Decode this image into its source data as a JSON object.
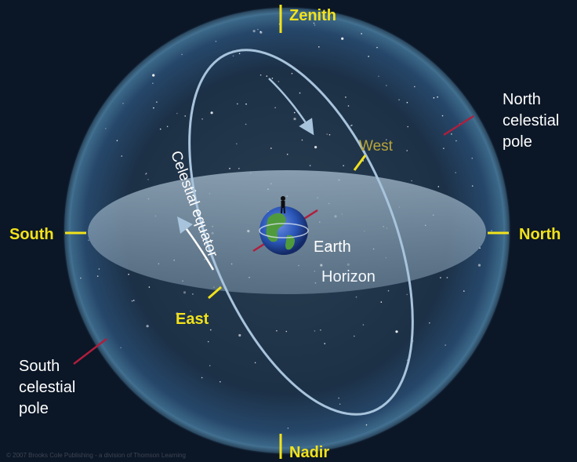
{
  "labels": {
    "zenith": "Zenith",
    "nadir": "Nadir",
    "south": "South",
    "north": "North",
    "west": "West",
    "east": "East",
    "earth": "Earth",
    "horizon": "Horizon",
    "celestial_equator": "Celestial equator",
    "north_celestial_pole": [
      "North",
      "celestial",
      "pole"
    ],
    "south_celestial_pole": [
      "South",
      "celestial",
      "pole"
    ]
  },
  "copyright": "© 2007 Brooks Cole Publishing - a division of Thomson Learning",
  "colors": {
    "background": "#0b1626",
    "sphere_glow": "#3d6a8a",
    "horizon_plane": "#9cb3c6",
    "equator": "#a8c4dc",
    "marker_yellow": "#f2e21a",
    "pole_axis": "#b01e3c",
    "earth_ocean": "#2a56b8",
    "earth_land": "#4f9a3c"
  }
}
